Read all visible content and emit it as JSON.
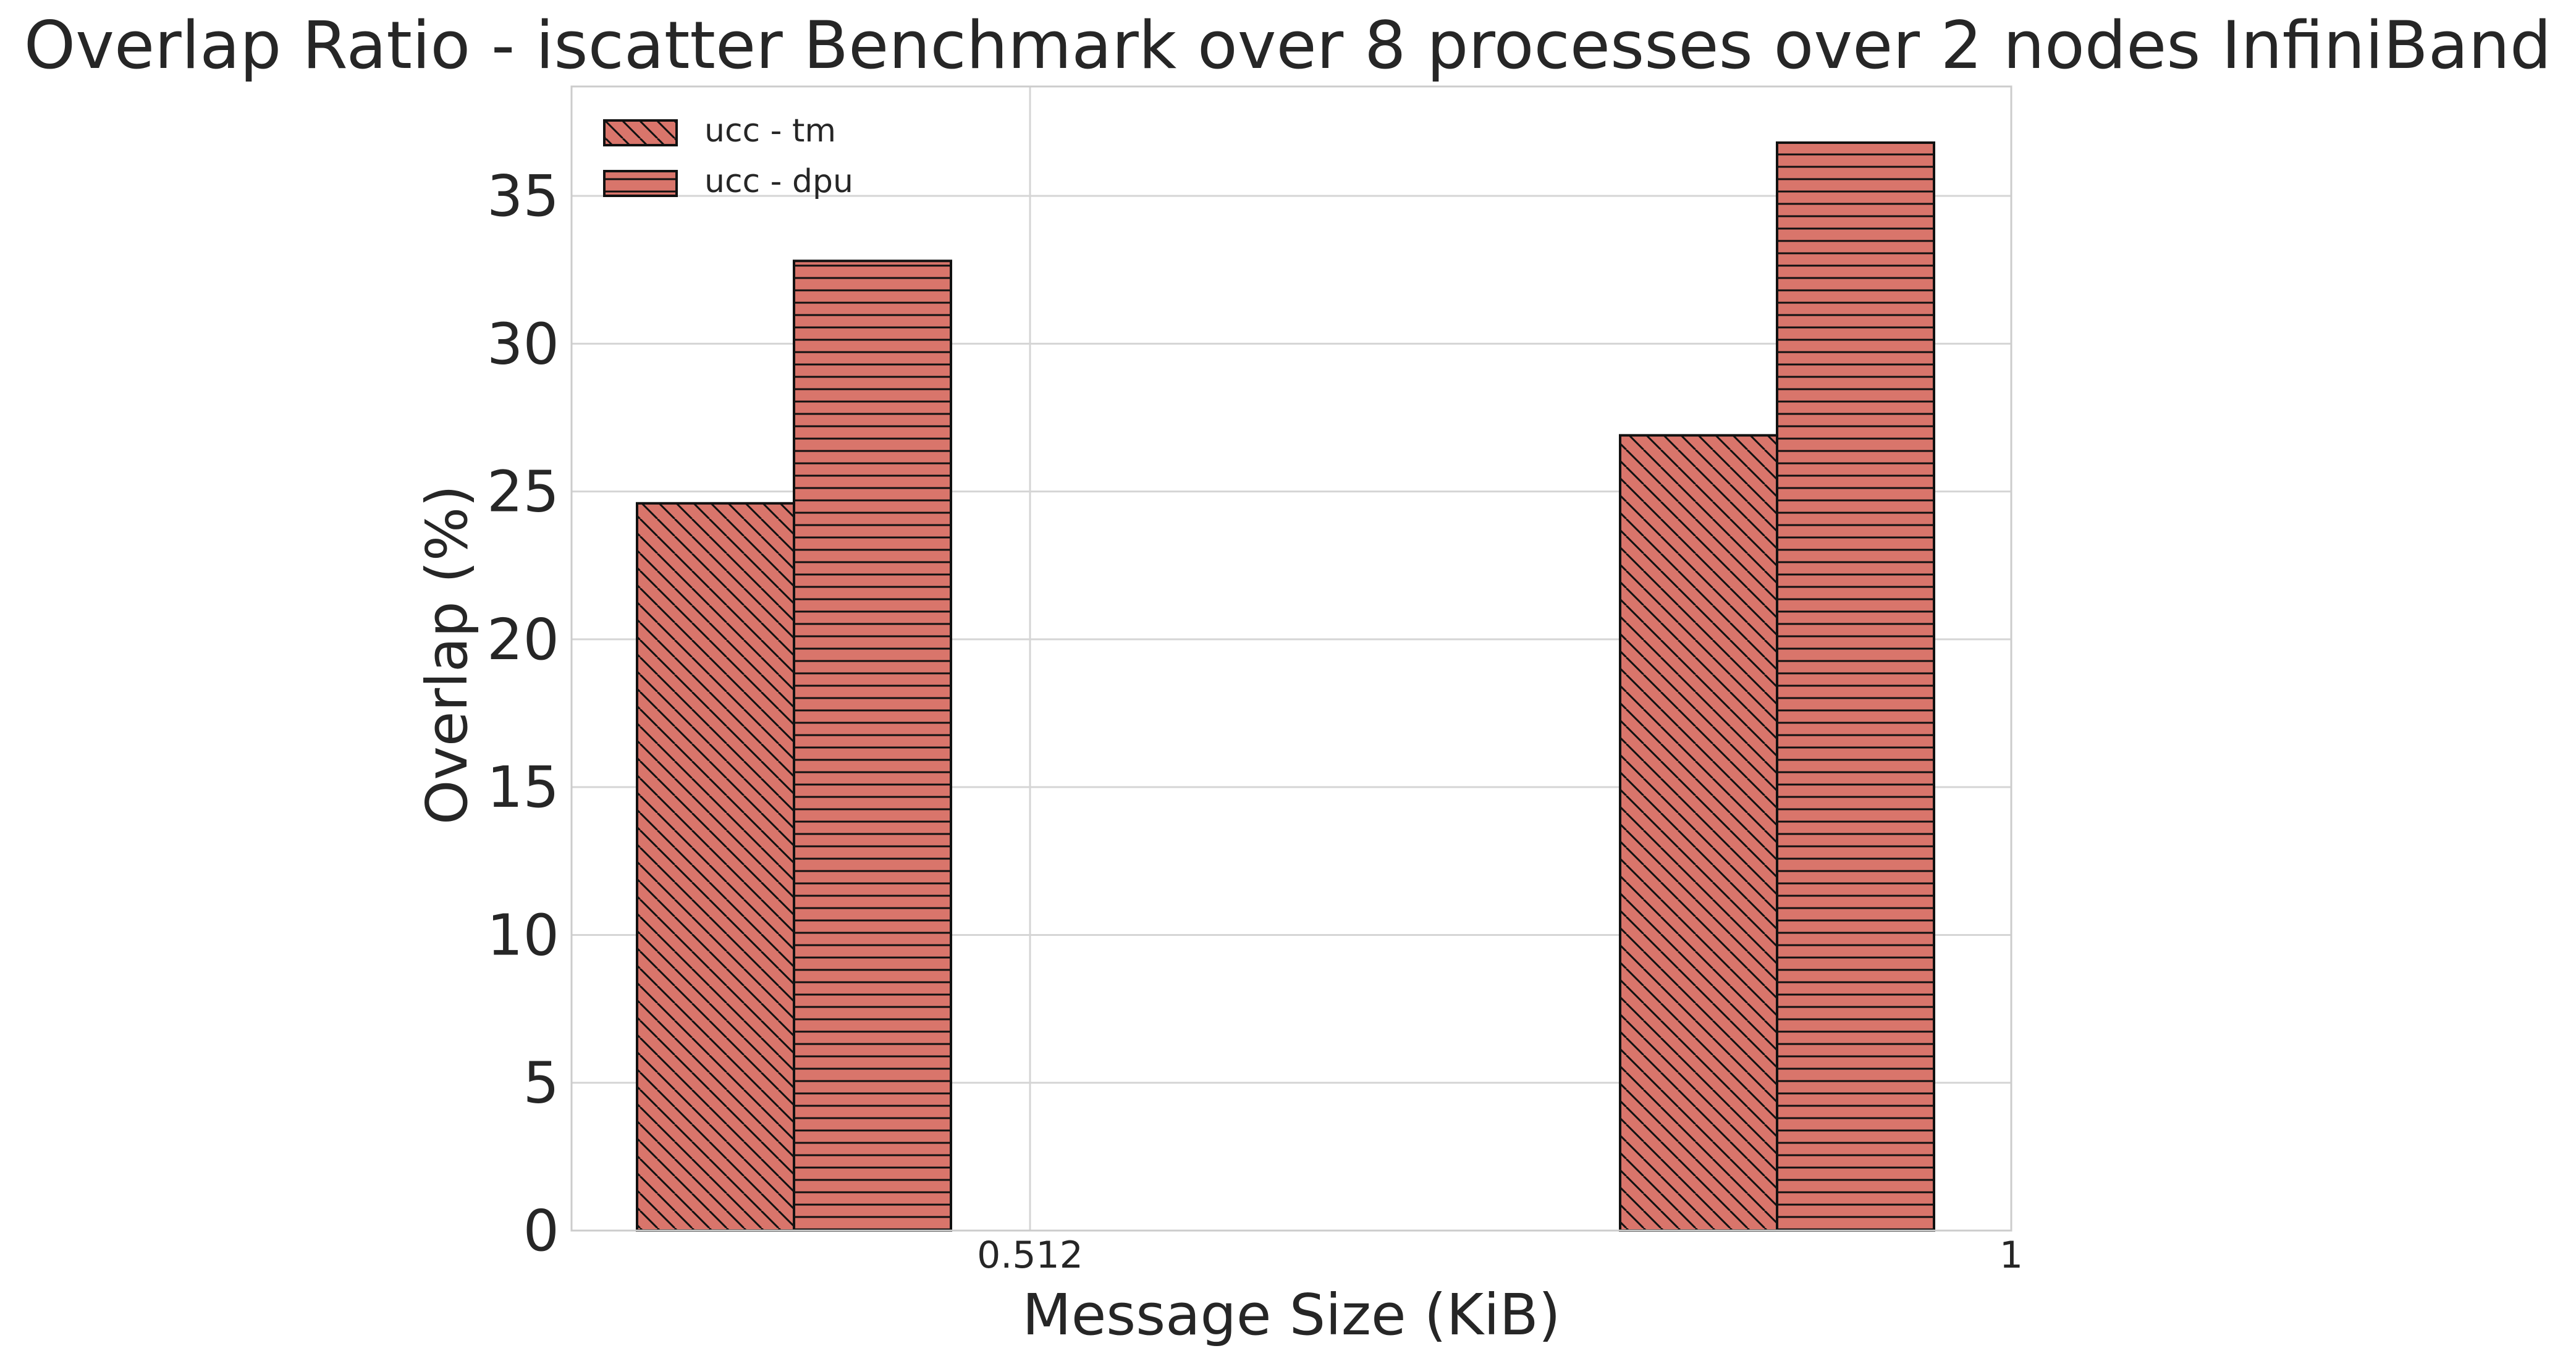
{
  "chart_data": {
    "type": "bar",
    "title": "Overlap Ratio - iscatter Benchmark over 8 processes over 2 nodes InfiniBand",
    "xlabel": "Message Size (KiB)",
    "ylabel": "Overlap (%)",
    "x_ticks": [
      "0.512",
      "1"
    ],
    "y_ticks": [
      "0",
      "5",
      "10",
      "15",
      "20",
      "25",
      "30",
      "35"
    ],
    "ylim": [
      0,
      38.7
    ],
    "grid": true,
    "legend_position": "top-left",
    "bar_color": "#d9756b",
    "edge_color": "#111111",
    "categories": [
      "0.512",
      "1"
    ],
    "series": [
      {
        "name": "ucc - tm",
        "hatch": "diagonal",
        "values": [
          24.6,
          26.9
        ]
      },
      {
        "name": "ucc - dpu",
        "hatch": "horizontal",
        "values": [
          32.8,
          36.8
        ]
      }
    ]
  }
}
